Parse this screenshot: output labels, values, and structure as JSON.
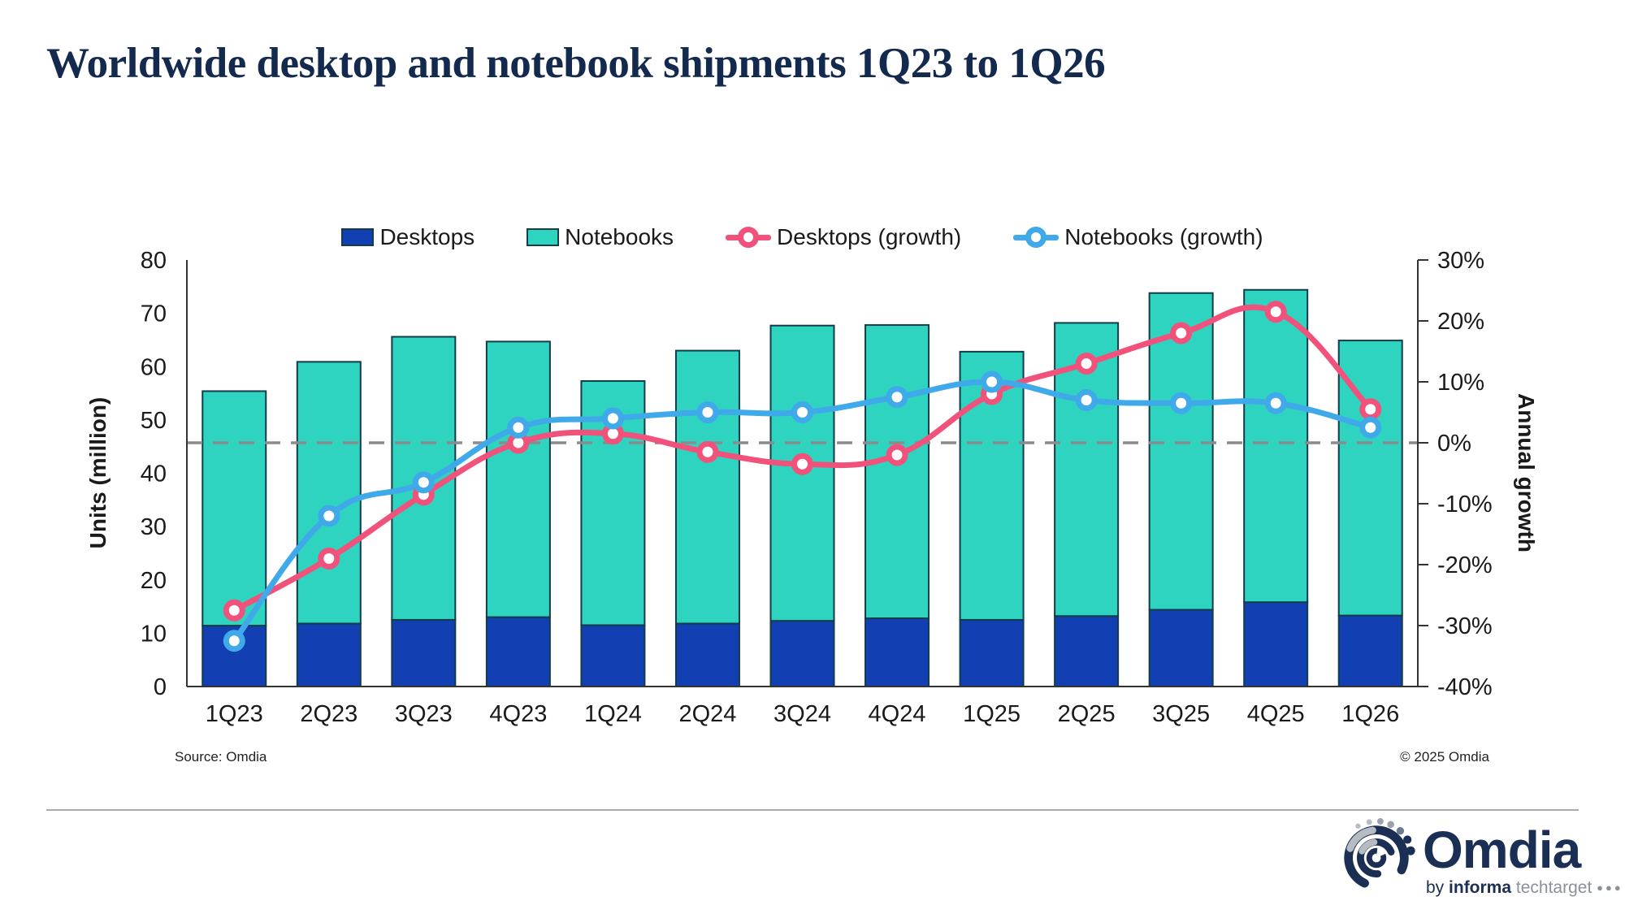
{
  "title": "Worldwide desktop and notebook shipments 1Q23 to 1Q26",
  "legend": [
    {
      "label": "Desktops",
      "type": "bar",
      "color": "#1240b2"
    },
    {
      "label": "Notebooks",
      "type": "bar",
      "color": "#2fd4c1"
    },
    {
      "label": "Desktops (growth)",
      "type": "line",
      "color": "#f0527c"
    },
    {
      "label": "Notebooks (growth)",
      "type": "line",
      "color": "#3fa9ea"
    }
  ],
  "chart_data": {
    "type": "combo-stacked-bar-line",
    "categories": [
      "1Q23",
      "2Q23",
      "3Q23",
      "4Q23",
      "1Q24",
      "2Q24",
      "3Q24",
      "4Q24",
      "1Q25",
      "2Q25",
      "3Q25",
      "4Q25",
      "1Q26"
    ],
    "series": [
      {
        "name": "Desktops",
        "type": "bar",
        "axis": "left",
        "stack": true,
        "color": "#1240b2",
        "values": [
          11.4,
          11.8,
          12.5,
          13.0,
          11.5,
          11.8,
          12.3,
          12.8,
          12.5,
          13.2,
          14.4,
          15.8,
          13.3
        ]
      },
      {
        "name": "Notebooks",
        "type": "bar",
        "axis": "left",
        "stack": true,
        "color": "#2fd4c1",
        "values": [
          44.0,
          49.1,
          53.1,
          51.7,
          45.8,
          51.2,
          55.4,
          55.0,
          50.3,
          55.0,
          59.4,
          58.6,
          51.6
        ]
      },
      {
        "name": "Desktops (growth)",
        "type": "line",
        "axis": "right",
        "color": "#f0527c",
        "values": [
          -27.5,
          -19,
          -8.5,
          0,
          1.5,
          -1.5,
          -3.5,
          -2,
          8,
          13,
          18,
          21.5,
          5.5
        ]
      },
      {
        "name": "Notebooks (growth)",
        "type": "line",
        "axis": "right",
        "color": "#3fa9ea",
        "values": [
          -32.5,
          -12,
          -6.5,
          2.5,
          4,
          5,
          5,
          7.5,
          10,
          7,
          6.5,
          6.5,
          2.5
        ]
      }
    ],
    "left_axis": {
      "label": "Units (million)",
      "min": 0,
      "max": 80,
      "step": 10
    },
    "right_axis": {
      "label": "Annual growth",
      "min": -40,
      "max": 30,
      "step": 10,
      "format": "percent"
    },
    "zero_growth_line": {
      "value": 0,
      "style": "dashed",
      "color": "#8c8c8c"
    },
    "bar_border_color": "#123c47",
    "legend_position": "top"
  },
  "footer": {
    "source": "Source: Omdia",
    "copyright": "© 2025 Omdia"
  },
  "logo": {
    "word": "Omdia",
    "by": "by",
    "informa": "informa",
    "techtarget": "techtarget",
    "dots": "●●●"
  }
}
